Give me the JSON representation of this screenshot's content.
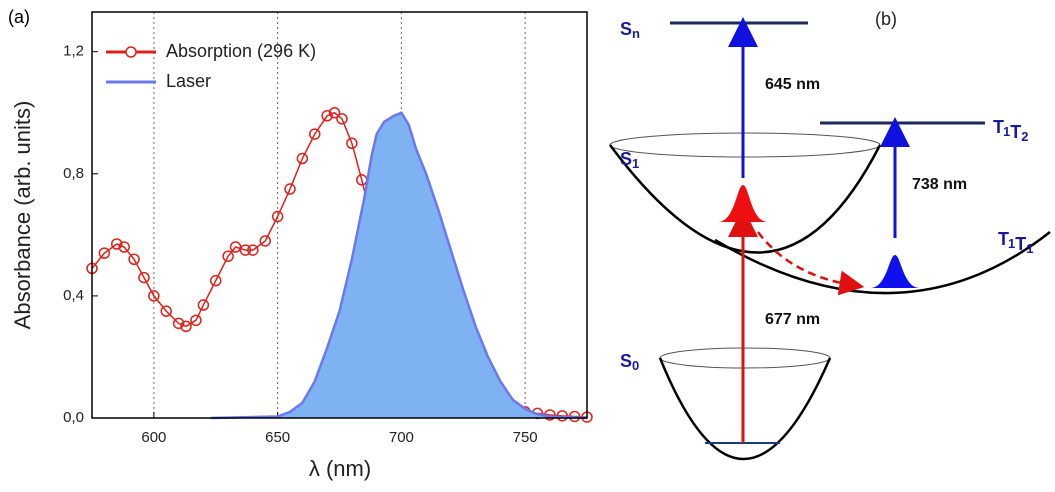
{
  "chart_data": {
    "type": "line",
    "panel_label": "(a)",
    "xlabel": "λ (nm)",
    "ylabel": "Absorbance (arb. units)",
    "xlim": [
      575,
      775
    ],
    "ylim": [
      0,
      1.33
    ],
    "xticks": [
      600,
      650,
      700,
      750
    ],
    "yticks": [
      {
        "value": 0,
        "label": "0,0"
      },
      {
        "value": 0.4,
        "label": "0,4"
      },
      {
        "value": 0.8,
        "label": "0,8"
      },
      {
        "value": 1.2,
        "label": "1,2"
      }
    ],
    "grid": "x",
    "legend": "upper left",
    "series": [
      {
        "name": "Absorption (296 K)",
        "color": "#e0201a",
        "marker": "circle",
        "x": [
          575,
          580,
          585,
          588,
          592,
          596,
          600,
          605,
          610,
          613,
          617,
          620,
          625,
          630,
          633,
          637,
          640,
          645,
          650,
          655,
          660,
          665,
          670,
          673,
          676,
          680,
          684,
          687,
          690,
          693,
          696,
          700,
          705,
          710,
          715,
          720,
          725,
          730,
          735,
          740,
          745,
          750,
          755,
          760,
          765,
          770,
          775
        ],
        "values": [
          0.49,
          0.54,
          0.57,
          0.56,
          0.52,
          0.46,
          0.4,
          0.35,
          0.31,
          0.3,
          0.32,
          0.37,
          0.45,
          0.53,
          0.56,
          0.55,
          0.55,
          0.58,
          0.66,
          0.75,
          0.85,
          0.93,
          0.99,
          1.0,
          0.98,
          0.9,
          0.78,
          0.68,
          0.56,
          0.46,
          0.39,
          0.31,
          0.24,
          0.18,
          0.13,
          0.1,
          0.08,
          0.06,
          0.045,
          0.035,
          0.025,
          0.02,
          0.015,
          0.01,
          0.007,
          0.005,
          0.003
        ]
      },
      {
        "name": "Laser",
        "color": "#6b78ee",
        "fill": "#7fb2f2",
        "area": true,
        "x": [
          623,
          650,
          655,
          660,
          665,
          670,
          675,
          680,
          685,
          688,
          690,
          693,
          697,
          700,
          703,
          706,
          710,
          715,
          720,
          725,
          730,
          735,
          740,
          745,
          750,
          755,
          760,
          770,
          775
        ],
        "values": [
          0,
          0.005,
          0.02,
          0.05,
          0.12,
          0.23,
          0.35,
          0.52,
          0.72,
          0.86,
          0.93,
          0.97,
          0.99,
          1.0,
          0.96,
          0.88,
          0.8,
          0.68,
          0.55,
          0.42,
          0.3,
          0.2,
          0.12,
          0.06,
          0.03,
          0.012,
          0.005,
          0.002,
          0
        ]
      }
    ]
  },
  "diagram": {
    "panel_label": "(b)",
    "states": [
      [
        [
          "S",
          "n"
        ]
      ],
      [
        [
          "S",
          "1"
        ]
      ],
      [
        [
          "S",
          "0"
        ]
      ],
      [
        [
          "T",
          "1"
        ],
        [
          "T",
          "2"
        ]
      ],
      [
        [
          "T",
          "1"
        ],
        [
          "T",
          "1"
        ]
      ]
    ],
    "transitions": [
      "645 nm",
      "738 nm",
      "677 nm"
    ]
  }
}
